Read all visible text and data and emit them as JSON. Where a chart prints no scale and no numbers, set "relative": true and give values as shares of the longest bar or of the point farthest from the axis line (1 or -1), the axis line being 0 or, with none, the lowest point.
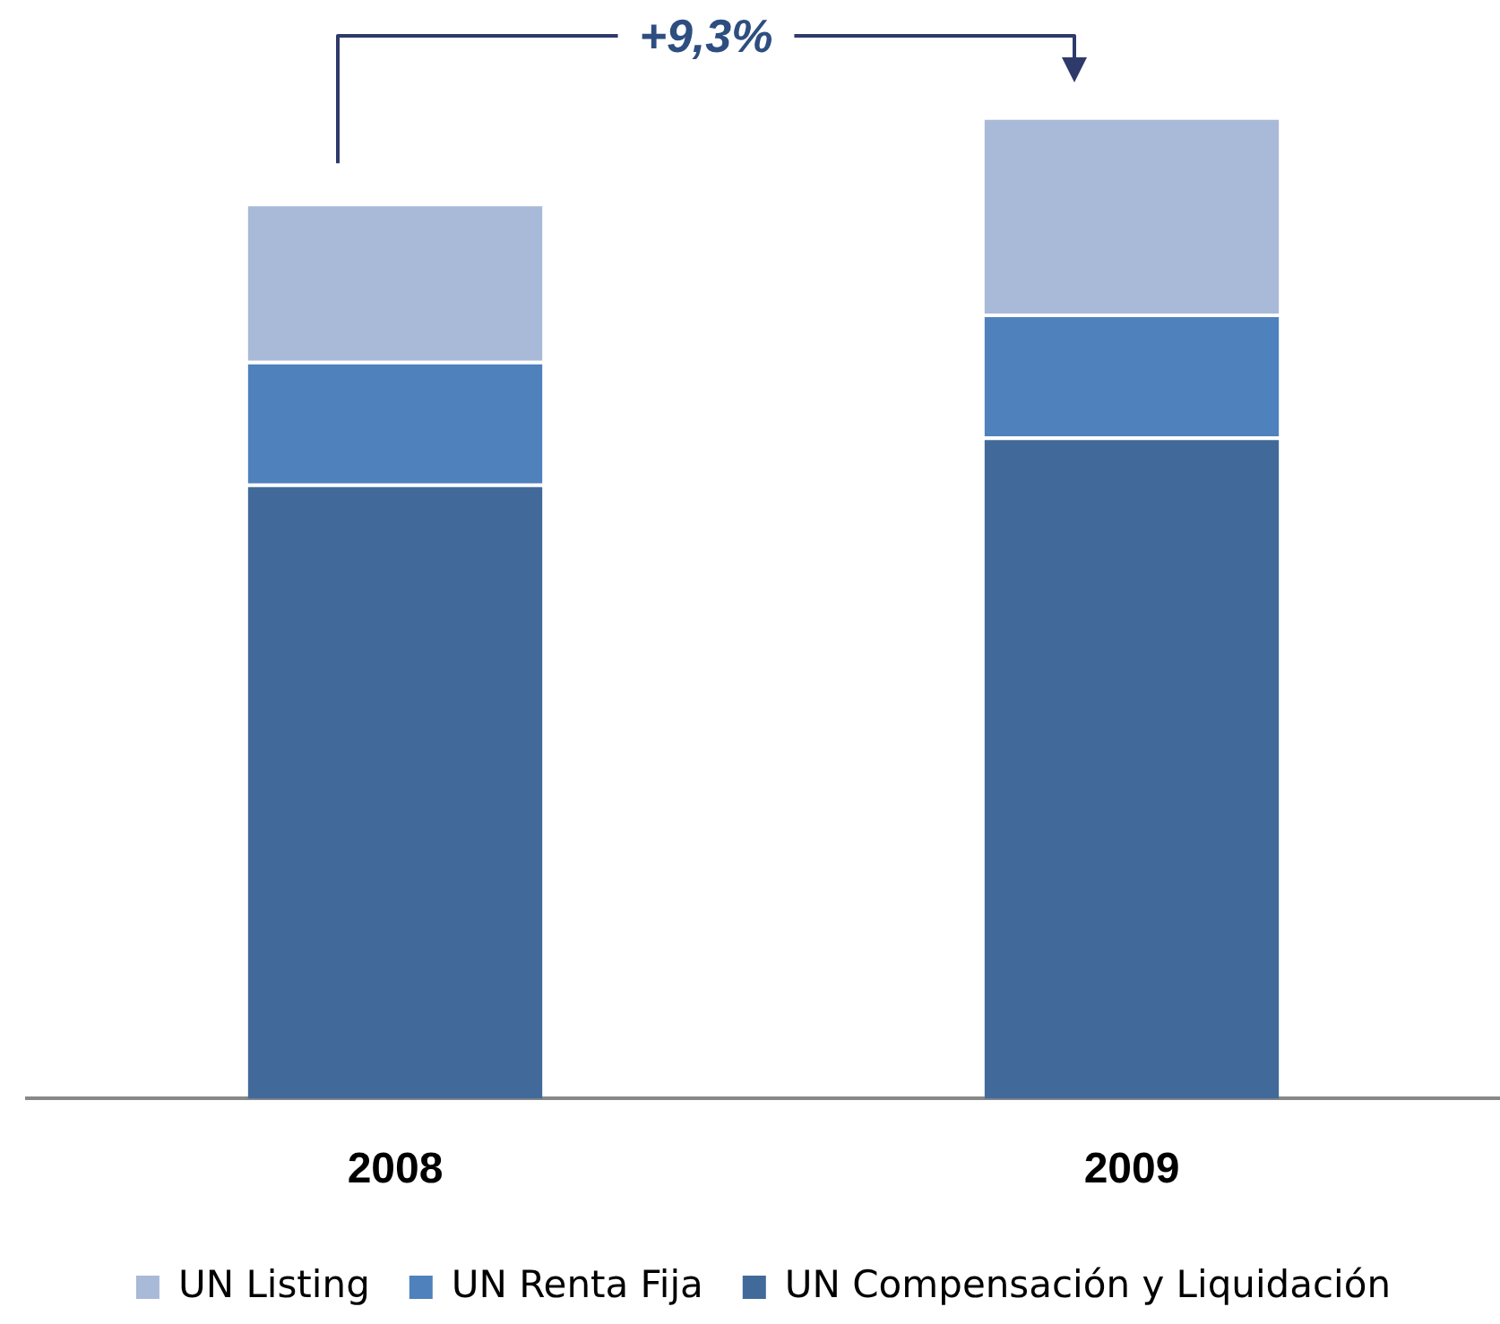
{
  "chart_data": {
    "type": "bar",
    "stacked": true,
    "relative": true,
    "categories": [
      "2008",
      "2009"
    ],
    "series": [
      {
        "name": "UN Compensación y Liquidación",
        "color": "#416a9b",
        "values": [
          0.626,
          0.674
        ]
      },
      {
        "name": "UN Renta Fija",
        "color": "#4f81bd",
        "values": [
          0.125,
          0.125
        ]
      },
      {
        "name": "UN Listing",
        "color": "#a9b9d8",
        "values": [
          0.161,
          0.201
        ]
      }
    ],
    "annotations": [
      "+9,3%"
    ],
    "legend": "bottom",
    "grid": false
  }
}
